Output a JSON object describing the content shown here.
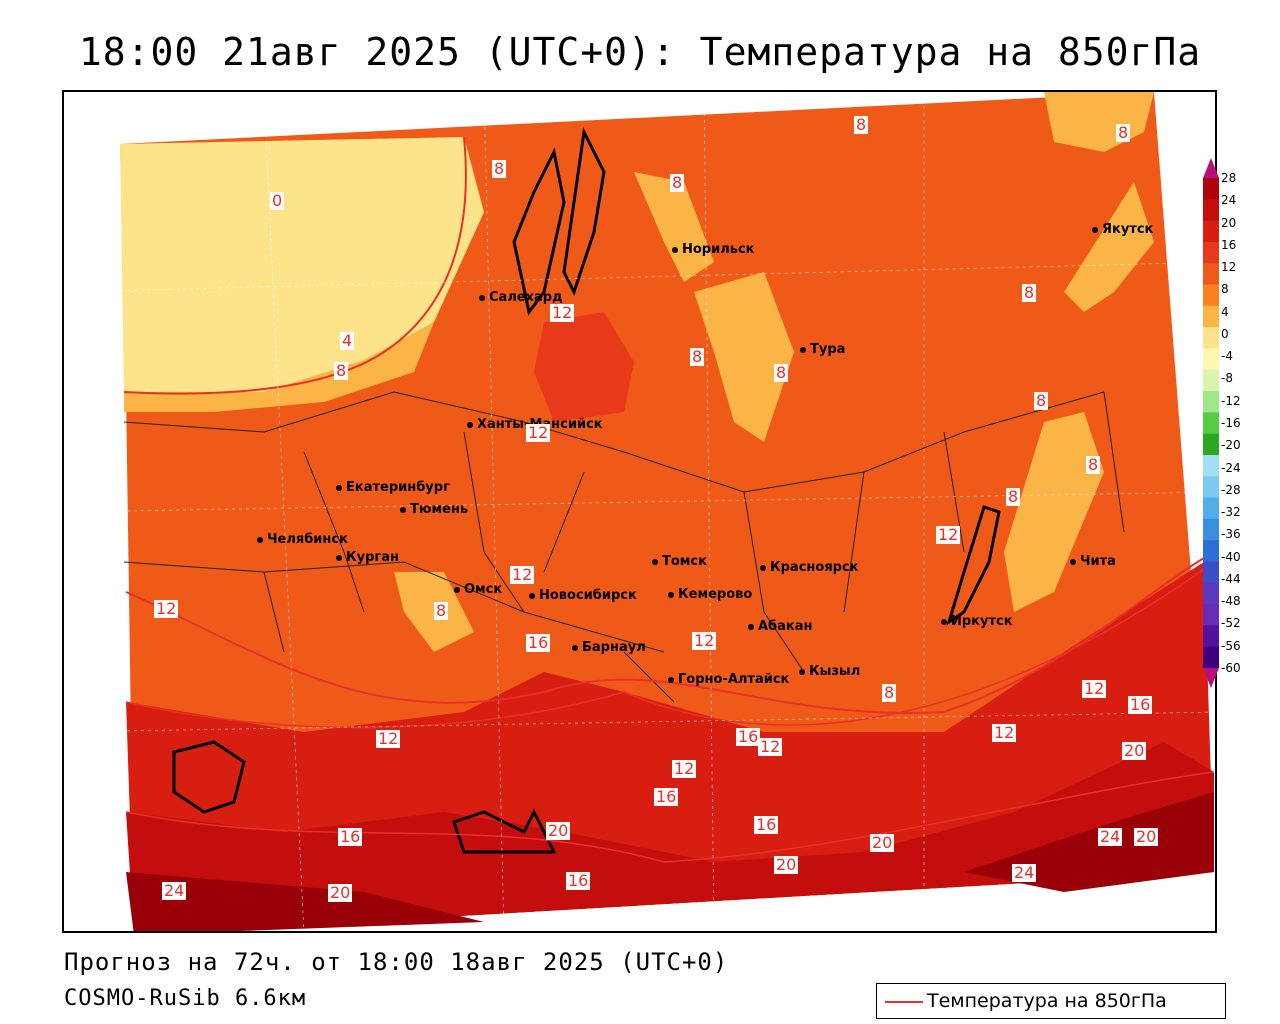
{
  "title": "18:00 21авг 2025 (UTC+0): Температура на 850гПа",
  "footer": {
    "forecast": "Прогноз на 72ч. от 18:00 18авг 2025 (UTC+0)",
    "model": "COSMO-RuSib 6.6км"
  },
  "legend": {
    "line_label": "Температура на 850гПа",
    "line_color": "#e8302a"
  },
  "colorbar": {
    "ticks": [
      "28",
      "24",
      "20",
      "16",
      "12",
      "8",
      "4",
      "0",
      "-4",
      "-8",
      "-12",
      "-16",
      "-20",
      "-24",
      "-28",
      "-32",
      "-36",
      "-40",
      "-44",
      "-48",
      "-52",
      "-56",
      "-60"
    ],
    "colors": [
      "#b0000a",
      "#c40d0d",
      "#d81e10",
      "#e8391a",
      "#f05a18",
      "#f7821e",
      "#fbb446",
      "#fde48a",
      "#fff6b0",
      "#d8f5b0",
      "#9fe88a",
      "#55cc44",
      "#2aa820",
      "#9fdff5",
      "#7ccaf0",
      "#52aee8",
      "#3a8ee0",
      "#2c6fd6",
      "#3b4ec8",
      "#5a3ac0",
      "#6a2cb4",
      "#5510a0",
      "#3c0080"
    ]
  },
  "cities": [
    {
      "name": "Норильск"
    },
    {
      "name": "Салехард"
    },
    {
      "name": "Тура"
    },
    {
      "name": "Якутск"
    },
    {
      "name": "Ханты-Мансийск"
    },
    {
      "name": "Екатеринбург"
    },
    {
      "name": "Тюмень"
    },
    {
      "name": "Челябинск"
    },
    {
      "name": "Курган"
    },
    {
      "name": "Омск"
    },
    {
      "name": "Томск"
    },
    {
      "name": "Новосибирск"
    },
    {
      "name": "Кемерово"
    },
    {
      "name": "Красноярск"
    },
    {
      "name": "Барнаул"
    },
    {
      "name": "Абакан"
    },
    {
      "name": "Горно-Алтайск"
    },
    {
      "name": "Кызыл"
    },
    {
      "name": "Иркутск"
    },
    {
      "name": "Чита"
    }
  ],
  "contour_labels": [
    "0",
    "4",
    "8",
    "8",
    "8",
    "8",
    "8",
    "8",
    "8",
    "8",
    "8",
    "8",
    "8",
    "8",
    "8",
    "12",
    "12",
    "12",
    "12",
    "12",
    "12",
    "12",
    "12",
    "12",
    "12",
    "12",
    "16",
    "16",
    "16",
    "16",
    "16",
    "16",
    "16",
    "20",
    "20",
    "20",
    "20",
    "20",
    "20",
    "24",
    "24",
    "24"
  ]
}
